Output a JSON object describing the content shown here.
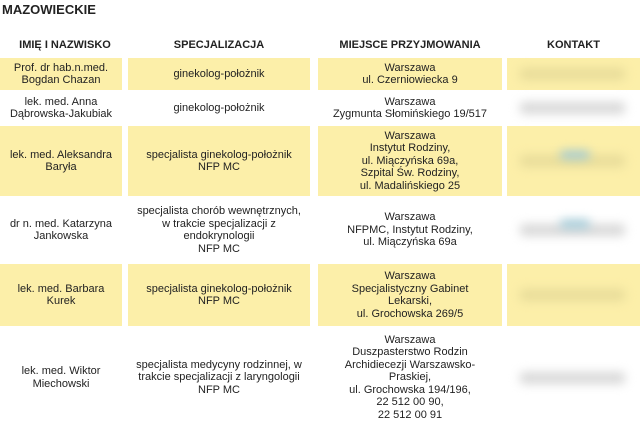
{
  "title": "MAZOWIECKIE",
  "table": {
    "headers": [
      "IMIĘ I NAZWISKO",
      "SPECJALIZACJA",
      "MIEJSCE PRZYJMOWANIA",
      "KONTAKT"
    ],
    "rows": [
      {
        "name": [
          "Prof. dr hab.n.med.",
          "Bogdan Chazan"
        ],
        "specialization": [
          "ginekolog-położnik"
        ],
        "place": [
          "Warszawa",
          "ul. Czerniowiecka 9"
        ]
      },
      {
        "name": [
          "lek. med. Anna",
          "Dąbrowska-Jakubiak"
        ],
        "specialization": [
          "ginekolog-położnik"
        ],
        "place": [
          "Warszawa",
          "Zygmunta Słomińskiego 19/517"
        ]
      },
      {
        "name": [
          "lek. med. Aleksandra",
          "Baryła"
        ],
        "specialization": [
          "specjalista ginekolog-położnik",
          "NFP MC"
        ],
        "place": [
          "Warszawa",
          "Instytut Rodziny,",
          "ul. Miączyńska 69a,",
          "Szpital Św. Rodziny,",
          "ul. Madalińskiego 25"
        ]
      },
      {
        "name": [
          "dr n. med. Katarzyna",
          "Jankowska"
        ],
        "specialization": [
          "specjalista chorób wewnętrznych,",
          "w trakcie specjalizacji z",
          "endokrynologii",
          "NFP MC"
        ],
        "place": [
          "Warszawa",
          "NFPMC, Instytut Rodziny,",
          "ul. Miączyńska 69a"
        ]
      },
      {
        "name": [
          "lek. med. Barbara",
          "Kurek"
        ],
        "specialization": [
          "specjalista ginekolog-położnik",
          "NFP MC"
        ],
        "place": [
          "Warszawa",
          "Specjalistyczny Gabinet",
          "Lekarski,",
          "ul. Grochowska 269/5"
        ]
      },
      {
        "name": [
          "lek. med. Wiktor",
          "Miechowski"
        ],
        "specialization": [
          "specjalista medycyny rodzinnej, w",
          "trakcie specjalizacji z laryngologii",
          "NFP MC"
        ],
        "place": [
          "Warszawa",
          "Duszpasterstwo Rodzin",
          "Archidiecezji Warszawsko-",
          "Praskiej,",
          "ul. Grochowska 194/196,",
          "22 512 00 90,",
          "22 512 00 91"
        ]
      }
    ]
  }
}
